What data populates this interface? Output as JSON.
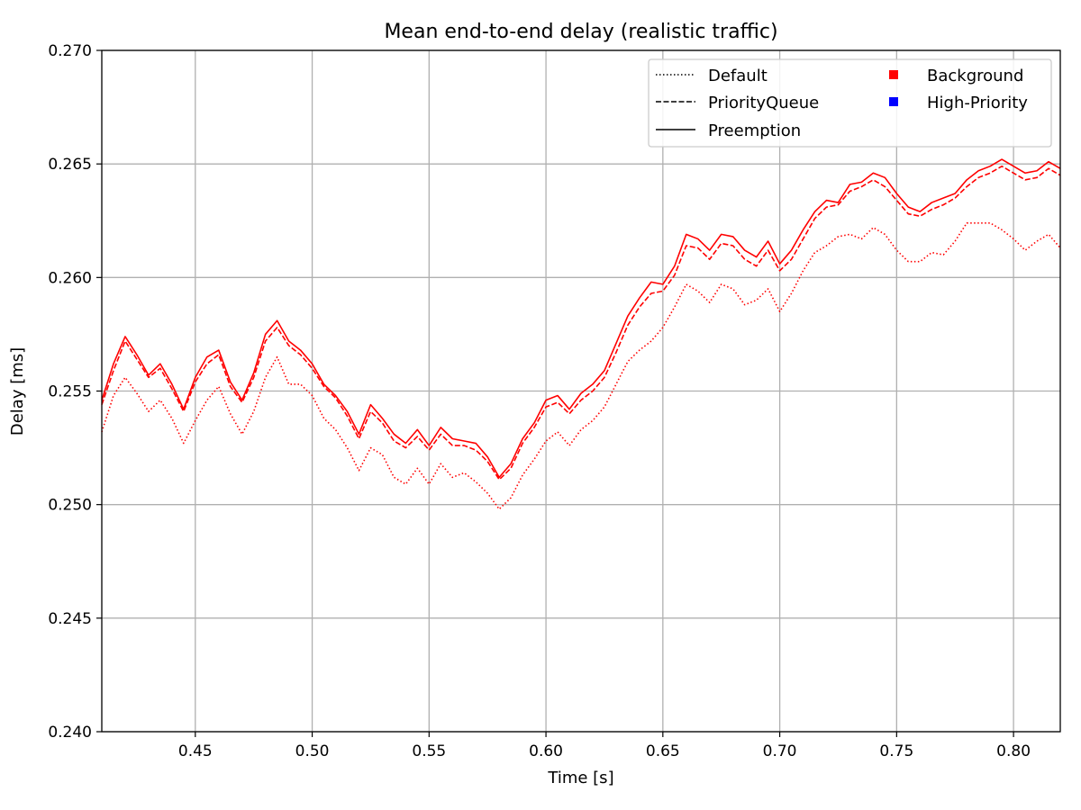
{
  "chart_data": {
    "type": "line",
    "title": "Mean end-to-end delay (realistic traffic)",
    "xlabel": "Time [s]",
    "ylabel": "Delay [ms]",
    "xlim": [
      0.41,
      0.82
    ],
    "ylim": [
      0.24,
      0.27
    ],
    "xticks": [
      "0.45",
      "0.50",
      "0.55",
      "0.60",
      "0.65",
      "0.70",
      "0.75",
      "0.80"
    ],
    "yticks": [
      "0.240",
      "0.245",
      "0.250",
      "0.255",
      "0.260",
      "0.265",
      "0.270"
    ],
    "grid": true,
    "legend_position": "top-right",
    "legend": {
      "styles": [
        {
          "label": "Default",
          "dash": "dotted"
        },
        {
          "label": "PriorityQueue",
          "dash": "dashed"
        },
        {
          "label": "Preemption",
          "dash": "solid"
        }
      ],
      "classes": [
        {
          "label": "Background",
          "color": "#ff0000"
        },
        {
          "label": "High-Priority",
          "color": "#0000ff"
        }
      ]
    },
    "x": [
      0.41,
      0.415,
      0.42,
      0.425,
      0.43,
      0.435,
      0.44,
      0.445,
      0.45,
      0.455,
      0.46,
      0.465,
      0.47,
      0.475,
      0.48,
      0.485,
      0.49,
      0.495,
      0.5,
      0.505,
      0.51,
      0.515,
      0.52,
      0.525,
      0.53,
      0.535,
      0.54,
      0.545,
      0.55,
      0.555,
      0.56,
      0.565,
      0.57,
      0.575,
      0.58,
      0.585,
      0.59,
      0.595,
      0.6,
      0.605,
      0.61,
      0.615,
      0.62,
      0.625,
      0.63,
      0.635,
      0.64,
      0.645,
      0.65,
      0.655,
      0.66,
      0.665,
      0.67,
      0.675,
      0.68,
      0.685,
      0.69,
      0.695,
      0.7,
      0.705,
      0.71,
      0.715,
      0.72,
      0.725,
      0.73,
      0.735,
      0.74,
      0.745,
      0.75,
      0.755,
      0.76,
      0.765,
      0.77,
      0.775,
      0.78,
      0.785,
      0.79,
      0.795,
      0.8,
      0.805,
      0.81,
      0.815,
      0.82
    ],
    "series": [
      {
        "name": "Preemption",
        "class": "Background",
        "color": "#ff0000",
        "dash": "solid",
        "values": [
          0.2546,
          0.2562,
          0.2574,
          0.2566,
          0.2557,
          0.2562,
          0.2553,
          0.2542,
          0.2556,
          0.2565,
          0.2568,
          0.2554,
          0.2546,
          0.2558,
          0.2575,
          0.2581,
          0.2572,
          0.2568,
          0.2562,
          0.2553,
          0.2548,
          0.2541,
          0.2531,
          0.2544,
          0.2538,
          0.2531,
          0.2527,
          0.2533,
          0.2526,
          0.2534,
          0.2529,
          0.2528,
          0.2527,
          0.2521,
          0.2512,
          0.2518,
          0.2529,
          0.2536,
          0.2546,
          0.2548,
          0.2542,
          0.2549,
          0.2553,
          0.2559,
          0.2571,
          0.2583,
          0.2591,
          0.2598,
          0.2597,
          0.2605,
          0.2619,
          0.2617,
          0.2612,
          0.2619,
          0.2618,
          0.2612,
          0.2609,
          0.2616,
          0.2606,
          0.2612,
          0.2621,
          0.2629,
          0.2634,
          0.2633,
          0.2641,
          0.2642,
          0.2646,
          0.2644,
          0.2637,
          0.2631,
          0.2629,
          0.2633,
          0.2635,
          0.2637,
          0.2643,
          0.2647,
          0.2649,
          0.2652,
          0.2649,
          0.2646,
          0.2647,
          0.2651,
          0.2648
        ]
      },
      {
        "name": "PriorityQueue",
        "class": "Background",
        "color": "#ff0000",
        "dash": "dashed",
        "values": [
          0.2544,
          0.2559,
          0.2572,
          0.2564,
          0.2556,
          0.256,
          0.2551,
          0.2541,
          0.2554,
          0.2562,
          0.2566,
          0.2552,
          0.2545,
          0.2556,
          0.2572,
          0.2578,
          0.257,
          0.2566,
          0.256,
          0.2552,
          0.2547,
          0.2539,
          0.2529,
          0.2541,
          0.2536,
          0.2528,
          0.2525,
          0.253,
          0.2524,
          0.2531,
          0.2526,
          0.2526,
          0.2524,
          0.2519,
          0.2511,
          0.2516,
          0.2527,
          0.2534,
          0.2543,
          0.2545,
          0.254,
          0.2546,
          0.255,
          0.2556,
          0.2567,
          0.2579,
          0.2587,
          0.2593,
          0.2594,
          0.2601,
          0.2614,
          0.2613,
          0.2608,
          0.2615,
          0.2614,
          0.2608,
          0.2605,
          0.2612,
          0.2603,
          0.2608,
          0.2617,
          0.2626,
          0.2631,
          0.2632,
          0.2638,
          0.264,
          0.2643,
          0.264,
          0.2634,
          0.2628,
          0.2627,
          0.263,
          0.2632,
          0.2635,
          0.264,
          0.2644,
          0.2646,
          0.2649,
          0.2646,
          0.2643,
          0.2644,
          0.2648,
          0.2645
        ]
      },
      {
        "name": "Default",
        "class": "Background",
        "color": "#ff0000",
        "dash": "dotted",
        "values": [
          0.2532,
          0.2548,
          0.2556,
          0.2549,
          0.2541,
          0.2546,
          0.2538,
          0.2527,
          0.2537,
          0.2546,
          0.2552,
          0.254,
          0.2531,
          0.2541,
          0.2556,
          0.2565,
          0.2553,
          0.2553,
          0.2548,
          0.2538,
          0.2533,
          0.2525,
          0.2515,
          0.2525,
          0.2522,
          0.2512,
          0.2509,
          0.2516,
          0.2509,
          0.2518,
          0.2512,
          0.2514,
          0.251,
          0.2505,
          0.2498,
          0.2503,
          0.2513,
          0.252,
          0.2528,
          0.2532,
          0.2526,
          0.2533,
          0.2537,
          0.2543,
          0.2553,
          0.2563,
          0.2568,
          0.2572,
          0.2578,
          0.2587,
          0.2597,
          0.2594,
          0.2589,
          0.2597,
          0.2595,
          0.2588,
          0.259,
          0.2595,
          0.2585,
          0.2593,
          0.2603,
          0.2611,
          0.2614,
          0.2618,
          0.2619,
          0.2617,
          0.2622,
          0.2619,
          0.2612,
          0.2607,
          0.2607,
          0.2611,
          0.261,
          0.2616,
          0.2624,
          0.2624,
          0.2624,
          0.2621,
          0.2617,
          0.2612,
          0.2616,
          0.2619,
          0.2613
        ]
      }
    ]
  }
}
